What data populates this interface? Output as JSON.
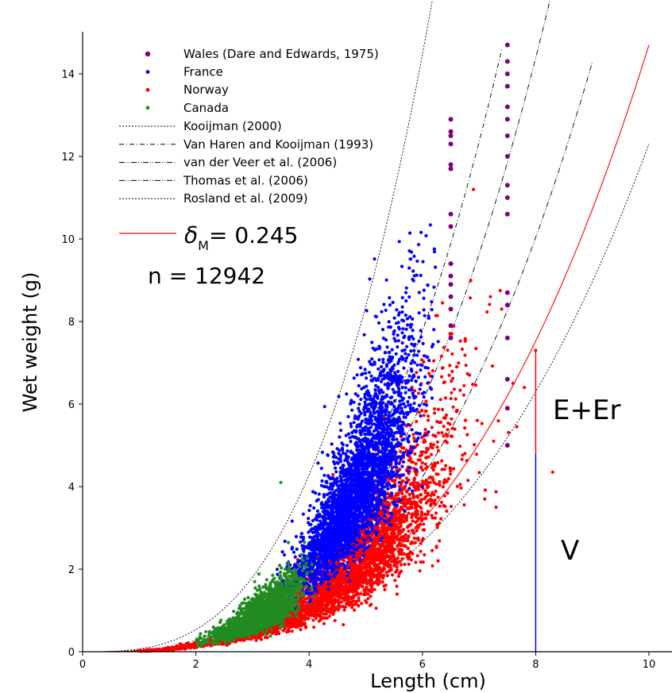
{
  "chart_data": {
    "type": "scatter",
    "xlabel": "Length (cm)",
    "ylabel": "Wet weight (g)",
    "xlim": [
      0,
      10.3
    ],
    "ylim": [
      0,
      15
    ],
    "xticks": [
      0,
      2,
      4,
      6,
      8,
      10
    ],
    "yticks": [
      0,
      2,
      4,
      6,
      8,
      10,
      12,
      14
    ],
    "grid": false,
    "legend_position": "top-left",
    "scatter_series": [
      {
        "name": "Wales (Dare and Edwards, 1975)",
        "color": "#800080",
        "marker_size": "large",
        "distribution": "discrete lengths 6.5 and 7.5 cm",
        "approx_points": [
          [
            6.5,
            7.6
          ],
          [
            6.5,
            7.9
          ],
          [
            6.5,
            8.3
          ],
          [
            6.5,
            8.6
          ],
          [
            6.5,
            8.9
          ],
          [
            6.5,
            9.1
          ],
          [
            6.5,
            9.4
          ],
          [
            6.5,
            10.3
          ],
          [
            6.5,
            10.6
          ],
          [
            6.5,
            11.7
          ],
          [
            6.5,
            11.8
          ],
          [
            6.5,
            12.3
          ],
          [
            6.5,
            12.5
          ],
          [
            6.5,
            12.6
          ],
          [
            6.5,
            12.9
          ],
          [
            7.5,
            5.0
          ],
          [
            7.5,
            5.9
          ],
          [
            7.5,
            6.6
          ],
          [
            7.5,
            7.6
          ],
          [
            7.5,
            8.4
          ],
          [
            7.5,
            8.7
          ],
          [
            7.5,
            10.6
          ],
          [
            7.5,
            11.0
          ],
          [
            7.5,
            11.3
          ],
          [
            7.5,
            12.0
          ],
          [
            7.5,
            12.5
          ],
          [
            7.5,
            12.9
          ],
          [
            7.5,
            13.2
          ],
          [
            7.5,
            13.7
          ],
          [
            7.5,
            14.0
          ],
          [
            7.5,
            14.3
          ],
          [
            7.5,
            14.7
          ]
        ]
      },
      {
        "name": "France",
        "color": "#0000ff",
        "marker_size": "small",
        "distribution": "dense cloud, length 3.5-6.2 cm, weight 0.2-10.3 g, approx_n 3500"
      },
      {
        "name": "Norway",
        "color": "#ff0000",
        "marker_size": "small",
        "distribution": "dense cloud, length 1-8.3 cm, weight 0-9 g, approx_n 4000",
        "approx_outliers": [
          [
            7.2,
            8.6
          ],
          [
            7.4,
            8.3
          ],
          [
            6.9,
            11.2
          ],
          [
            7.6,
            6.5
          ],
          [
            7.8,
            6.4
          ],
          [
            8.3,
            4.35
          ],
          [
            8.0,
            7.3
          ],
          [
            7.3,
            3.5
          ],
          [
            7.1,
            3.7
          ]
        ]
      },
      {
        "name": "Canada",
        "color": "#228b22",
        "marker_size": "small",
        "distribution": "dense cloud, length 2.0-4.0 cm, weight 0-2.8 g, approx_n 2500",
        "approx_outliers": [
          [
            3.5,
            4.1
          ]
        ]
      }
    ],
    "curves": [
      {
        "name": "Kooijman (2000)",
        "style": "dotted",
        "color": "#000000",
        "w_at_1cm": 0.067,
        "x_end": 6.2
      },
      {
        "name": "Van Haren and Kooijman (1993)",
        "style": "dashdot",
        "color": "#000000",
        "w_at_1cm": 0.036,
        "x_end": 7.4
      },
      {
        "name": "van der Veer et al. (2006)",
        "style": "dashdotdot",
        "color": "#000000",
        "w_at_1cm": 0.0281,
        "x_end": 8.6
      },
      {
        "name": "Thomas et al. (2006)",
        "style": "dashdotdot",
        "color": "#000000",
        "w_at_1cm": 0.0196,
        "x_end": 9.0
      },
      {
        "name": "Rosland et al. (2009)",
        "style": "dotted",
        "color": "#000000",
        "w_at_1cm": 0.0123,
        "x_end": 10.0
      },
      {
        "name": "δM= 0.245",
        "style": "solid",
        "color": "#ff0000",
        "w_at_1cm": 0.0147,
        "x_end": 10.0
      }
    ],
    "annotation_bar": {
      "x": 8.0,
      "blue_top": 4.8,
      "red_top": 7.3,
      "blue_color": "#0000ff",
      "red_color": "#ff0000"
    },
    "annotations": {
      "n_text": "n = 12942",
      "upper_label": "E+Er",
      "lower_label": "V"
    },
    "delta_legend": {
      "symbol": "δ",
      "subscript": "M",
      "rest": "= 0.245"
    }
  }
}
